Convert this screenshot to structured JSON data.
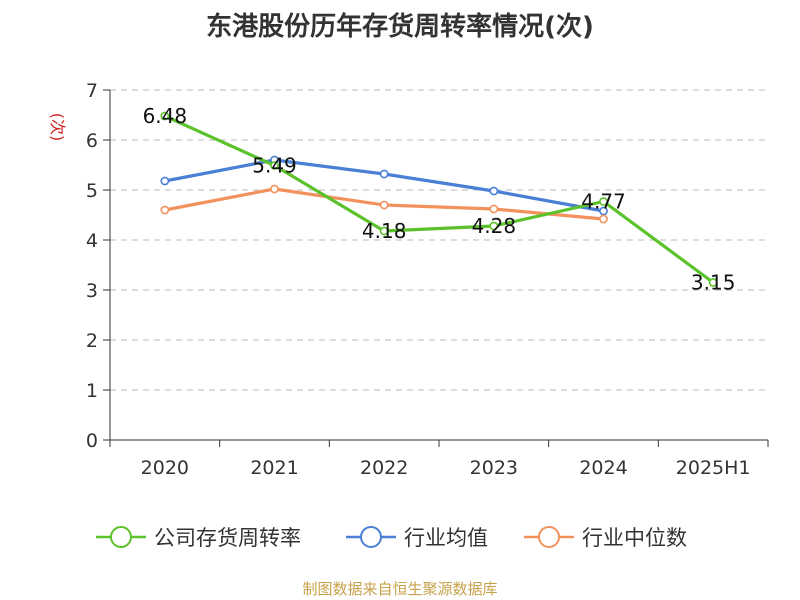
{
  "chart_data": {
    "type": "line",
    "title": "东港股份历年存货周转率情况(次)",
    "ylabel": "(次)",
    "categories": [
      "2020",
      "2021",
      "2022",
      "2023",
      "2024",
      "2025H1"
    ],
    "ylim": [
      0,
      7
    ],
    "yticks": [
      "0",
      "1",
      "2",
      "3",
      "4",
      "5",
      "6",
      "7"
    ],
    "grid": true,
    "legend_position": "bottom",
    "series": [
      {
        "name": "公司存货周转率",
        "color": "#5cc22b",
        "values": [
          6.48,
          5.49,
          4.18,
          4.28,
          4.77,
          3.15
        ],
        "labels": [
          "6.48",
          "5.49",
          "4.18",
          "4.28",
          "4.77",
          "3.15"
        ]
      },
      {
        "name": "行业均值",
        "color": "#4a7fd6",
        "values": [
          5.18,
          5.6,
          5.32,
          4.98,
          4.58,
          null
        ]
      },
      {
        "name": "行业中位数",
        "color": "#f3915d",
        "values": [
          4.6,
          5.02,
          4.7,
          4.62,
          4.42,
          null
        ]
      }
    ]
  },
  "ylabel_color": "#d22222",
  "source": {
    "text": "制图数据来自恒生聚源数据库",
    "color": "#c8a24a"
  }
}
